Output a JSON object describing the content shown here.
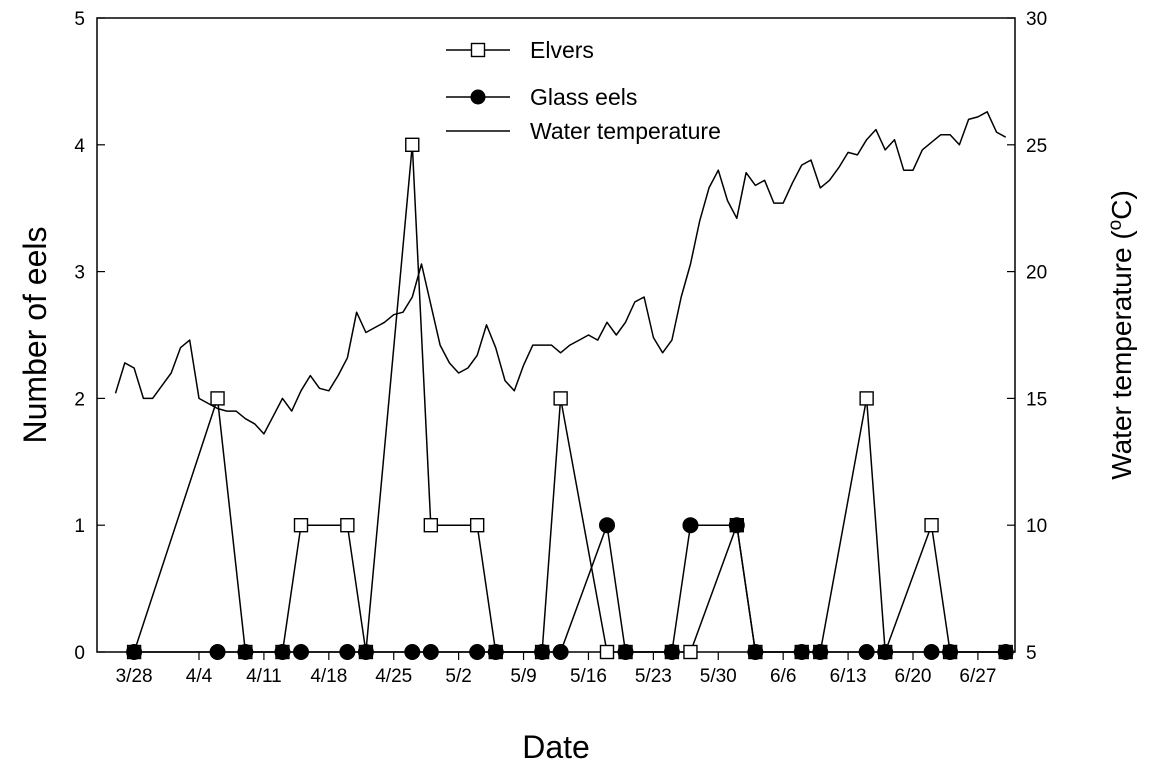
{
  "chart_data": {
    "type": "line",
    "xlabel": "Date",
    "ylabel": "Number of eels",
    "y2label_main": "Water temperature (",
    "y2label_sup": "o",
    "y2label_end": "C)",
    "xlim": [
      "3/24",
      "7/1"
    ],
    "ylim": [
      0,
      5
    ],
    "y2lim": [
      5,
      30
    ],
    "y_ticks": [
      "0",
      "1",
      "2",
      "3",
      "4",
      "5"
    ],
    "y2_ticks": [
      "5",
      "10",
      "15",
      "20",
      "25",
      "30"
    ],
    "x_ticks": [
      "3/28",
      "4/4",
      "4/11",
      "4/18",
      "4/25",
      "5/2",
      "5/9",
      "5/16",
      "5/23",
      "5/30",
      "6/6",
      "6/13",
      "6/20",
      "6/27"
    ],
    "legend_position": "top-center",
    "series": [
      {
        "name": "Elvers",
        "marker": "open-square",
        "axis": "left",
        "points": [
          [
            "3/28",
            0
          ],
          [
            "4/6",
            2
          ],
          [
            "4/9",
            0
          ],
          [
            "4/13",
            0
          ],
          [
            "4/15",
            1
          ],
          [
            "4/20",
            1
          ],
          [
            "4/22",
            0
          ],
          [
            "4/27",
            4
          ],
          [
            "4/29",
            1
          ],
          [
            "5/4",
            1
          ],
          [
            "5/6",
            0
          ],
          [
            "5/11",
            0
          ],
          [
            "5/13",
            2
          ],
          [
            "5/18",
            0
          ],
          [
            "5/20",
            0
          ],
          [
            "5/25",
            0
          ],
          [
            "5/27",
            0
          ],
          [
            "6/1",
            1
          ],
          [
            "6/3",
            0
          ],
          [
            "6/8",
            0
          ],
          [
            "6/10",
            0
          ],
          [
            "6/15",
            2
          ],
          [
            "6/17",
            0
          ],
          [
            "6/22",
            1
          ],
          [
            "6/24",
            0
          ],
          [
            "6/30",
            0
          ]
        ]
      },
      {
        "name": "Glass eels",
        "marker": "filled-circle",
        "axis": "left",
        "points": [
          [
            "3/28",
            0
          ],
          [
            "4/6",
            0
          ],
          [
            "4/9",
            0
          ],
          [
            "4/13",
            0
          ],
          [
            "4/15",
            0
          ],
          [
            "4/20",
            0
          ],
          [
            "4/22",
            0
          ],
          [
            "4/27",
            0
          ],
          [
            "4/29",
            0
          ],
          [
            "5/4",
            0
          ],
          [
            "5/6",
            0
          ],
          [
            "5/11",
            0
          ],
          [
            "5/13",
            0
          ],
          [
            "5/18",
            1
          ],
          [
            "5/20",
            0
          ],
          [
            "5/25",
            0
          ],
          [
            "5/27",
            1
          ],
          [
            "6/1",
            1
          ],
          [
            "6/3",
            0
          ],
          [
            "6/8",
            0
          ],
          [
            "6/10",
            0
          ],
          [
            "6/15",
            0
          ],
          [
            "6/17",
            0
          ],
          [
            "6/22",
            0
          ],
          [
            "6/24",
            0
          ],
          [
            "6/30",
            0
          ]
        ]
      },
      {
        "name": "Water temperature",
        "marker": "none",
        "axis": "right",
        "points": [
          [
            "3/26",
            15.2
          ],
          [
            "3/27",
            16.4
          ],
          [
            "3/28",
            16.2
          ],
          [
            "3/29",
            15.0
          ],
          [
            "3/30",
            15.0
          ],
          [
            "3/31",
            15.5
          ],
          [
            "4/1",
            16.0
          ],
          [
            "4/2",
            17.0
          ],
          [
            "4/3",
            17.3
          ],
          [
            "4/4",
            15.0
          ],
          [
            "4/5",
            14.8
          ],
          [
            "4/6",
            14.6
          ],
          [
            "4/7",
            14.5
          ],
          [
            "4/8",
            14.5
          ],
          [
            "4/9",
            14.2
          ],
          [
            "4/10",
            14.0
          ],
          [
            "4/11",
            13.6
          ],
          [
            "4/12",
            14.3
          ],
          [
            "4/13",
            15.0
          ],
          [
            "4/14",
            14.5
          ],
          [
            "4/15",
            15.3
          ],
          [
            "4/16",
            15.9
          ],
          [
            "4/17",
            15.4
          ],
          [
            "4/18",
            15.3
          ],
          [
            "4/19",
            15.9
          ],
          [
            "4/20",
            16.6
          ],
          [
            "4/21",
            18.4
          ],
          [
            "4/22",
            17.6
          ],
          [
            "4/23",
            17.8
          ],
          [
            "4/24",
            18.0
          ],
          [
            "4/25",
            18.3
          ],
          [
            "4/26",
            18.4
          ],
          [
            "4/27",
            19.0
          ],
          [
            "4/28",
            20.3
          ],
          [
            "4/29",
            18.7
          ],
          [
            "4/30",
            17.1
          ],
          [
            "5/1",
            16.4
          ],
          [
            "5/2",
            16.0
          ],
          [
            "5/3",
            16.2
          ],
          [
            "5/4",
            16.7
          ],
          [
            "5/5",
            17.9
          ],
          [
            "5/6",
            17.0
          ],
          [
            "5/7",
            15.7
          ],
          [
            "5/8",
            15.3
          ],
          [
            "5/9",
            16.3
          ],
          [
            "5/10",
            17.1
          ],
          [
            "5/11",
            17.1
          ],
          [
            "5/12",
            17.1
          ],
          [
            "5/13",
            16.8
          ],
          [
            "5/14",
            17.1
          ],
          [
            "5/15",
            17.3
          ],
          [
            "5/16",
            17.5
          ],
          [
            "5/17",
            17.3
          ],
          [
            "5/18",
            18.0
          ],
          [
            "5/19",
            17.5
          ],
          [
            "5/20",
            18.0
          ],
          [
            "5/21",
            18.8
          ],
          [
            "5/22",
            19.0
          ],
          [
            "5/23",
            17.4
          ],
          [
            "5/24",
            16.8
          ],
          [
            "5/25",
            17.3
          ],
          [
            "5/26",
            19.0
          ],
          [
            "5/27",
            20.3
          ],
          [
            "5/28",
            22.0
          ],
          [
            "5/29",
            23.3
          ],
          [
            "5/30",
            24.0
          ],
          [
            "5/31",
            22.8
          ],
          [
            "6/1",
            22.1
          ],
          [
            "6/2",
            23.9
          ],
          [
            "6/3",
            23.4
          ],
          [
            "6/4",
            23.6
          ],
          [
            "6/5",
            22.7
          ],
          [
            "6/6",
            22.7
          ],
          [
            "6/7",
            23.5
          ],
          [
            "6/8",
            24.2
          ],
          [
            "6/9",
            24.4
          ],
          [
            "6/10",
            23.3
          ],
          [
            "6/11",
            23.6
          ],
          [
            "6/12",
            24.1
          ],
          [
            "6/13",
            24.7
          ],
          [
            "6/14",
            24.6
          ],
          [
            "6/15",
            25.2
          ],
          [
            "6/16",
            25.6
          ],
          [
            "6/17",
            24.8
          ],
          [
            "6/18",
            25.2
          ],
          [
            "6/19",
            24.0
          ],
          [
            "6/20",
            24.0
          ],
          [
            "6/21",
            24.8
          ],
          [
            "6/22",
            25.1
          ],
          [
            "6/23",
            25.4
          ],
          [
            "6/24",
            25.4
          ],
          [
            "6/25",
            25.0
          ],
          [
            "6/26",
            26.0
          ],
          [
            "6/27",
            26.1
          ],
          [
            "6/28",
            26.3
          ],
          [
            "6/29",
            25.5
          ],
          [
            "6/30",
            25.3
          ]
        ]
      }
    ]
  }
}
